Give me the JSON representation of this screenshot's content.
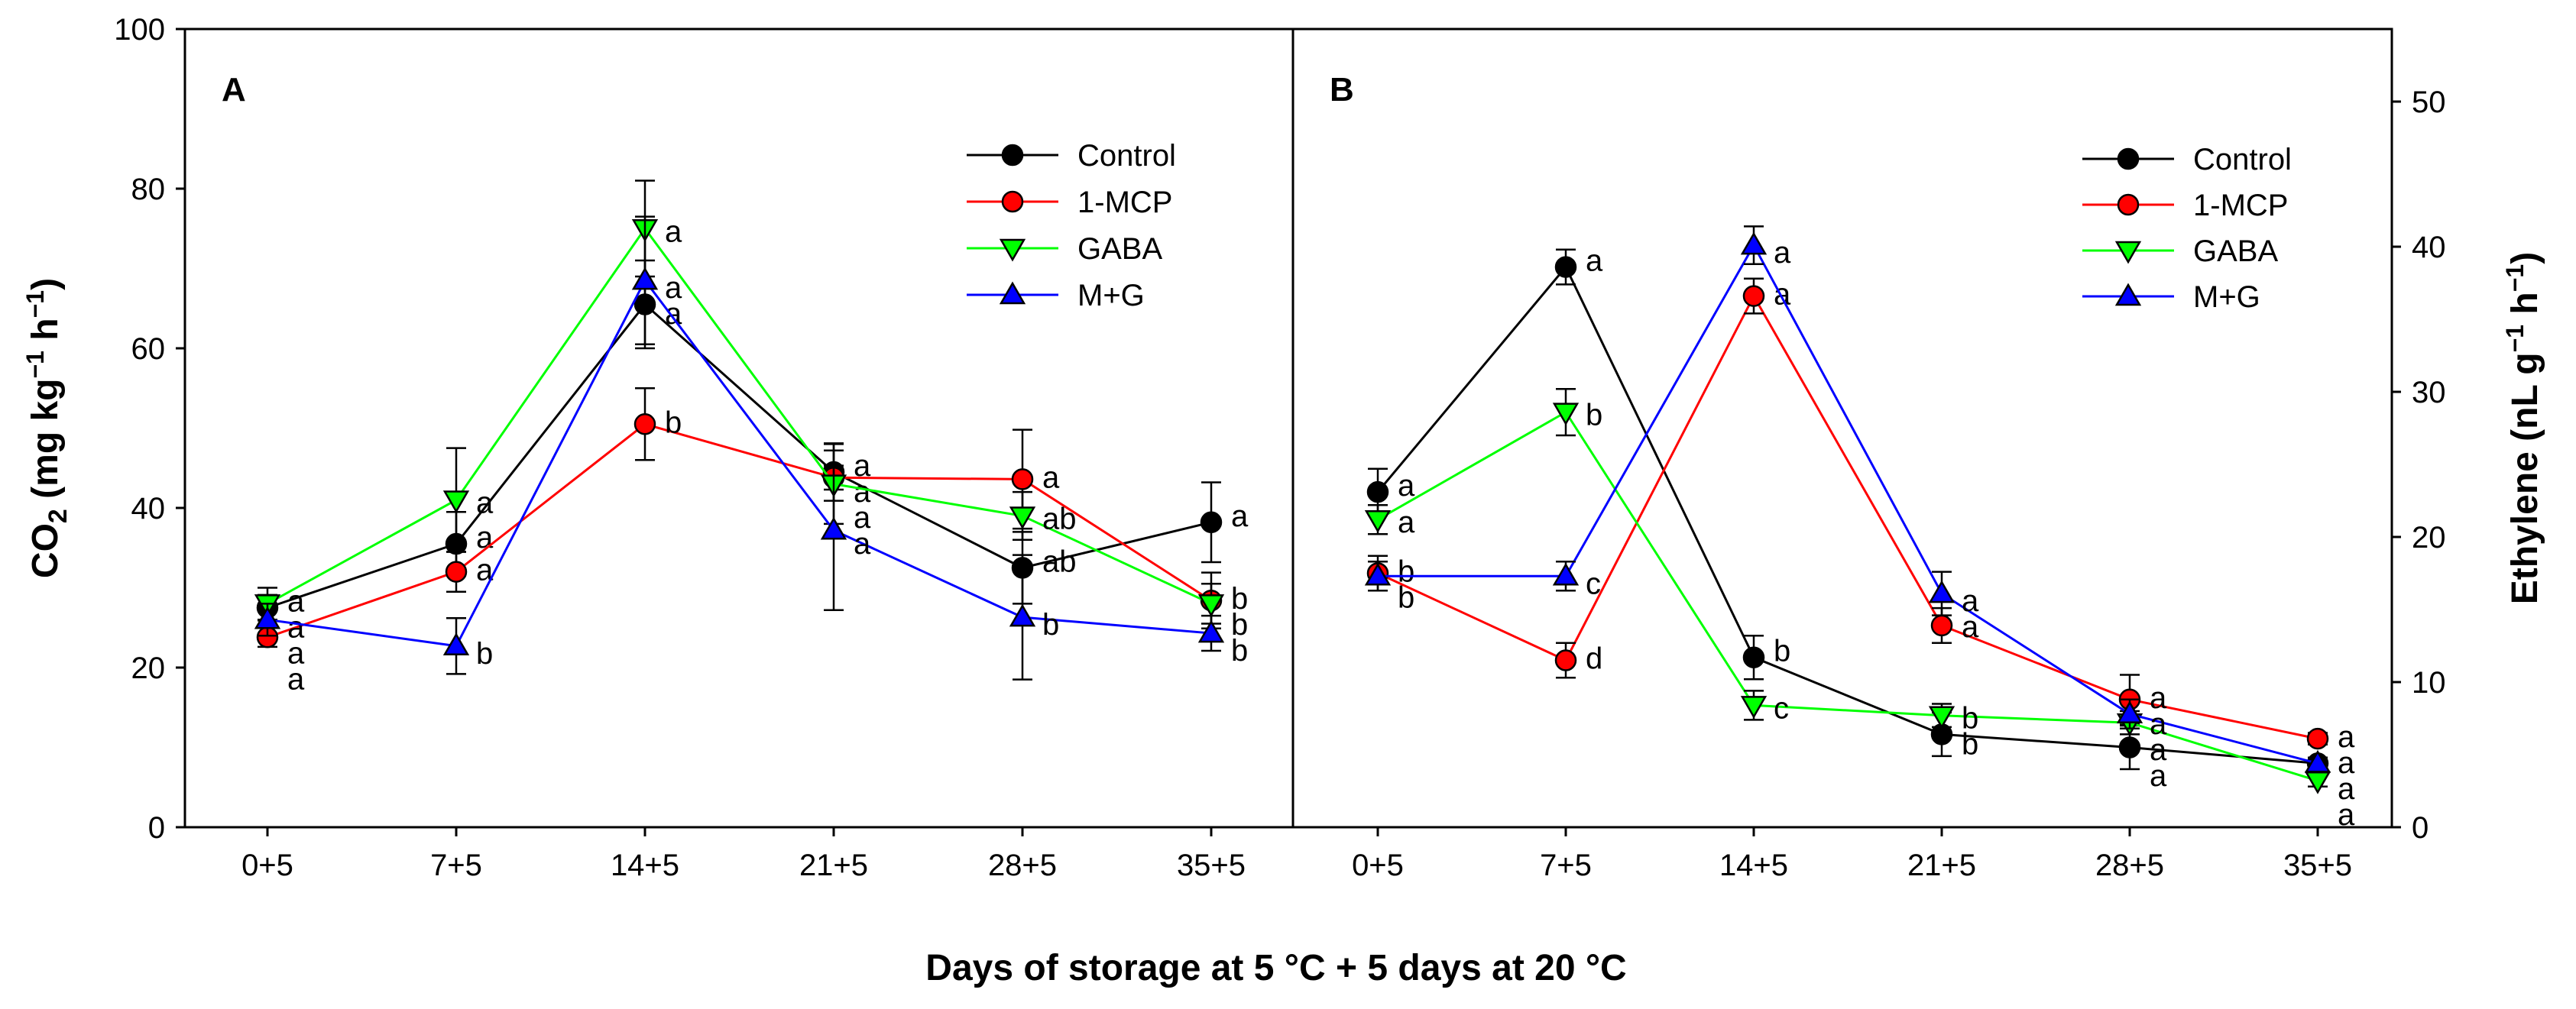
{
  "colors": {
    "Control": "#000000",
    "1-MCP": "#ff0000",
    "GABA": "#00ff00",
    "M+G": "#0000ff"
  },
  "markers": {
    "Control": "circle",
    "1-MCP": "circle",
    "GABA": "triangle-down",
    "M+G": "triangle-up"
  },
  "common_xlabel": "Days of storage at 5 °C + 5 days at 20 °C",
  "chart_data": [
    {
      "type": "line",
      "panel": "A",
      "title": "",
      "xlabel": "Days of storage at 5 °C + 5 days at 20 °C",
      "ylabel": {
        "pre": "CO",
        "sub": "2",
        "mid": " (mg kg",
        "sup1": "−1",
        "mid2": " h",
        "sup2": "−1",
        "post": ")"
      },
      "ylim": [
        0,
        100
      ],
      "yticks": [
        0,
        20,
        40,
        60,
        80,
        100
      ],
      "y_axis_side": "left",
      "categories": [
        "0+5",
        "7+5",
        "14+5",
        "21+5",
        "28+5",
        "35+5"
      ],
      "legend": {
        "placement": "top-right",
        "entries": [
          "Control",
          "1-MCP",
          "GABA",
          "M+G"
        ]
      },
      "series": [
        {
          "name": "Control",
          "values": [
            27.5,
            35.5,
            65.5,
            44.5,
            32.5,
            38.2
          ],
          "errors": [
            1.6,
            4.0,
            5.5,
            3.6,
            4.5,
            5.0
          ],
          "letters": [
            "a",
            "a",
            "a",
            "a",
            "ab",
            "a"
          ]
        },
        {
          "name": "1-MCP",
          "values": [
            23.8,
            32.0,
            50.5,
            43.8,
            43.6,
            28.4
          ],
          "errors": [
            1.2,
            2.5,
            4.5,
            1.5,
            6.2,
            3.5
          ],
          "letters": [
            "a",
            "a",
            "b",
            "a",
            "a",
            "b"
          ]
        },
        {
          "name": "GABA",
          "values": [
            28.0,
            41.0,
            75.0,
            43.0,
            39.0,
            28.0
          ],
          "errors": [
            2.0,
            6.5,
            6.0,
            5.0,
            3.0,
            2.5
          ],
          "letters": [
            "a",
            "a",
            "a",
            "a",
            "ab",
            "b"
          ]
        },
        {
          "name": "M+G",
          "values": [
            26.0,
            22.7,
            68.5,
            37.2,
            26.3,
            24.3
          ],
          "errors": [
            2.0,
            3.5,
            8.0,
            10.0,
            7.8,
            2.2
          ],
          "letters": [
            "a",
            "b",
            "a",
            "a",
            "b",
            "b"
          ]
        }
      ]
    },
    {
      "type": "line",
      "panel": "B",
      "title": "",
      "xlabel": "Days of storage at 5 °C + 5 days at 20 °C",
      "ylabel": {
        "pre": "Ethylene (nL g",
        "sup1": "−1",
        "mid": " h",
        "sup2": "−1",
        "post": ")"
      },
      "ylim": [
        0,
        55
      ],
      "yticks": [
        0,
        10,
        20,
        30,
        40,
        50
      ],
      "y_axis_side": "right",
      "categories": [
        "0+5",
        "7+5",
        "14+5",
        "21+5",
        "28+5",
        "35+5"
      ],
      "legend": {
        "placement": "top-right",
        "entries": [
          "Control",
          "1-MCP",
          "GABA",
          "M+G"
        ]
      },
      "series": [
        {
          "name": "Control",
          "values": [
            23.1,
            38.6,
            11.7,
            6.4,
            5.5,
            4.4
          ],
          "errors": [
            1.6,
            1.2,
            1.5,
            1.5,
            1.5,
            0.4
          ],
          "letters": [
            "a",
            "a",
            "b",
            "b",
            "a",
            "a"
          ]
        },
        {
          "name": "1-MCP",
          "values": [
            17.5,
            11.5,
            36.6,
            13.9,
            8.8,
            6.1
          ],
          "errors": [
            1.2,
            1.2,
            1.2,
            1.2,
            1.7,
            0.4
          ],
          "letters": [
            "b",
            "d",
            "a",
            "a",
            "a",
            "a"
          ]
        },
        {
          "name": "GABA",
          "values": [
            21.2,
            28.6,
            8.4,
            7.7,
            7.2,
            3.2
          ],
          "errors": [
            1.0,
            1.6,
            1.0,
            0.8,
            0.8,
            0.4
          ],
          "letters": [
            "a",
            "b",
            "c",
            "b",
            "a",
            "a"
          ]
        },
        {
          "name": "M+G",
          "values": [
            17.3,
            17.3,
            40.1,
            16.1,
            7.8,
            4.4
          ],
          "errors": [
            1.0,
            1.0,
            1.3,
            1.5,
            1.0,
            0.4
          ],
          "letters": [
            "b",
            "c",
            "a",
            "a",
            "a",
            "a"
          ]
        }
      ]
    }
  ]
}
